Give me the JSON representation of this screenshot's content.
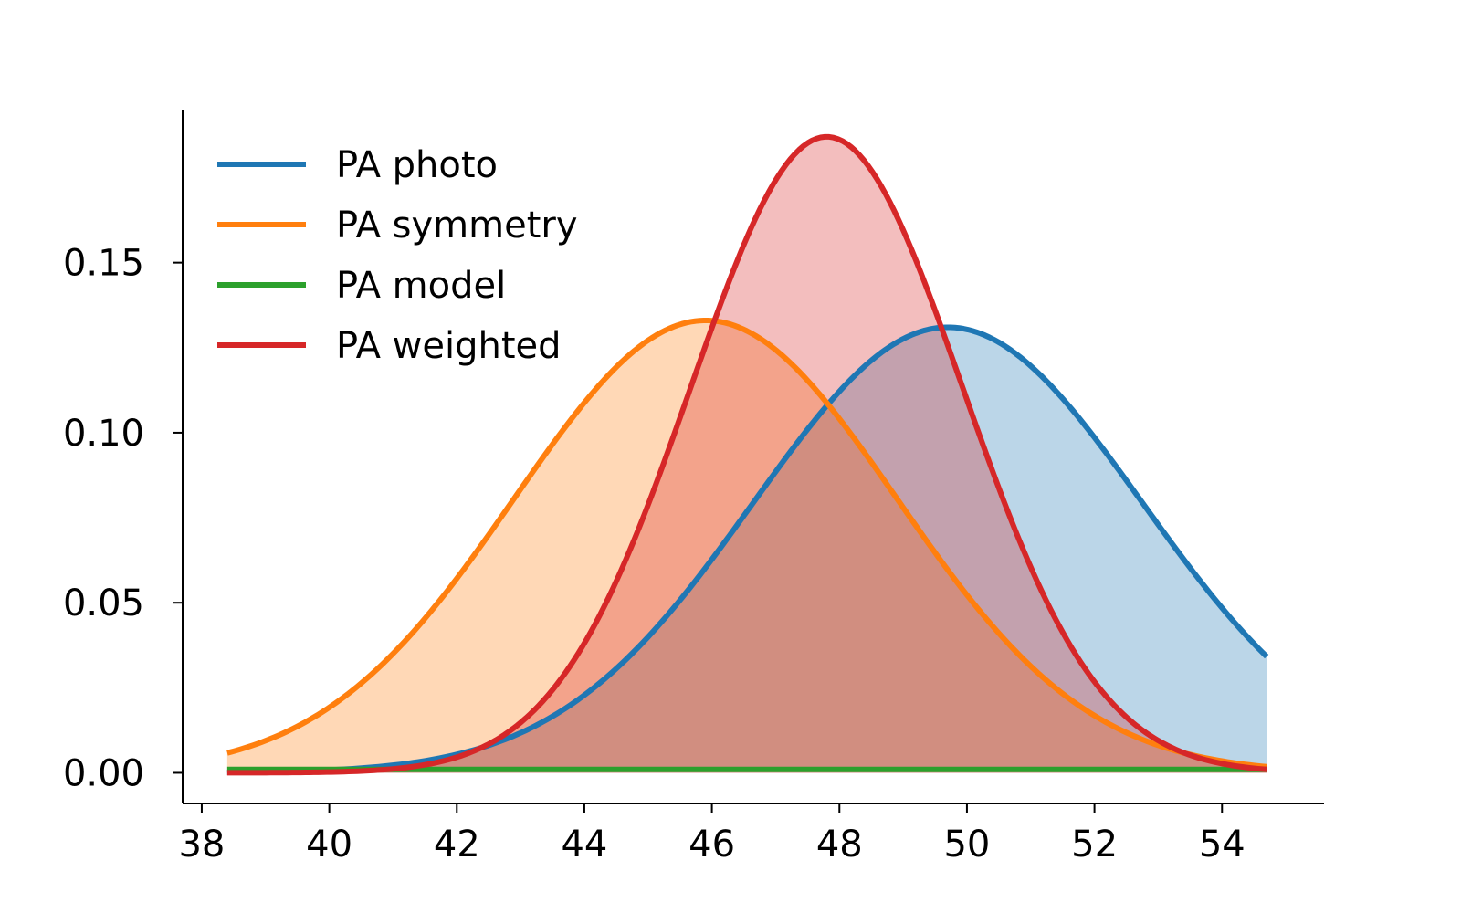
{
  "chart_data": {
    "type": "area",
    "title": "",
    "xlabel": "",
    "ylabel": "",
    "xlim": [
      37.7,
      55.6
    ],
    "ylim": [
      -0.009,
      0.195
    ],
    "x_ticks": [
      38,
      40,
      42,
      44,
      46,
      48,
      50,
      52,
      54
    ],
    "y_ticks": [
      0.0,
      0.05,
      0.1,
      0.15
    ],
    "x_range": [
      38.4,
      54.7
    ],
    "grid": false,
    "legend_position": "top-left",
    "series": [
      {
        "name": "PA photo",
        "color": "#1f77b4",
        "fill": true,
        "peak_x": 49.7,
        "peak_y": 0.131,
        "sigma": 3.05
      },
      {
        "name": "PA symmetry",
        "color": "#ff7f0e",
        "fill": true,
        "peak_x": 45.9,
        "peak_y": 0.133,
        "sigma": 3.0
      },
      {
        "name": "PA model",
        "color": "#2ca02c",
        "fill": false,
        "constant_y": 0.001
      },
      {
        "name": "PA weighted",
        "color": "#d62728",
        "fill": true,
        "peak_x": 47.8,
        "peak_y": 0.187,
        "sigma": 2.13
      }
    ]
  }
}
